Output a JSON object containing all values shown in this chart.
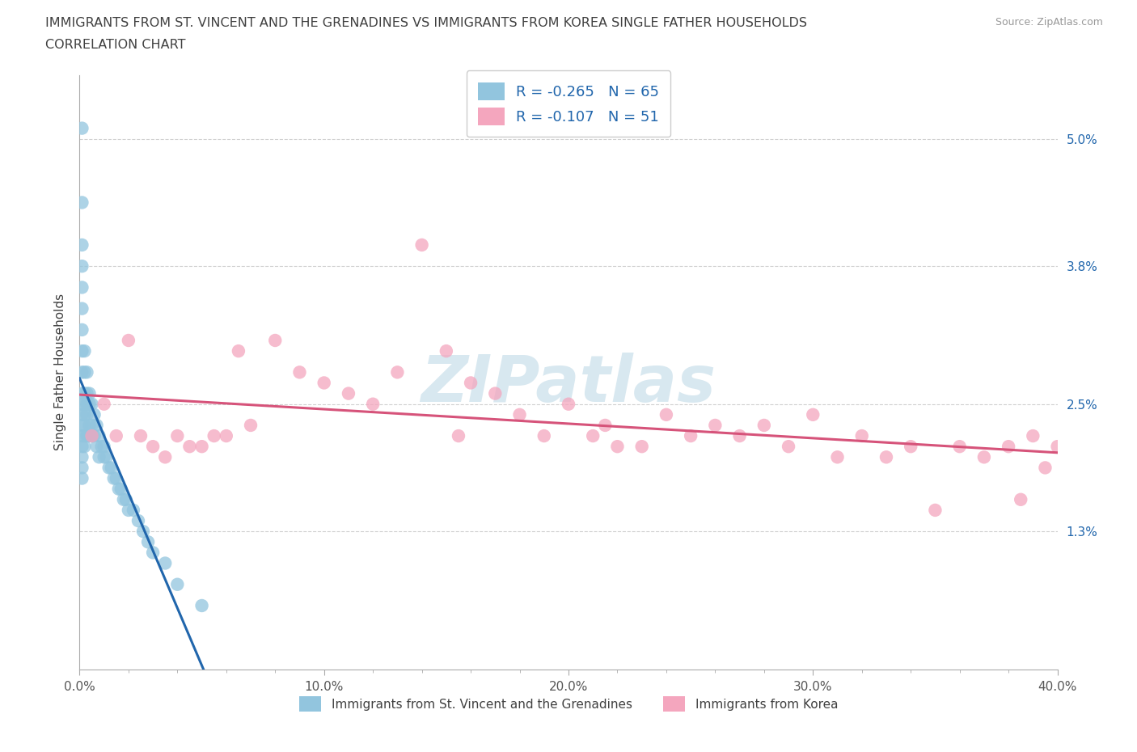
{
  "title_line1": "IMMIGRANTS FROM ST. VINCENT AND THE GRENADINES VS IMMIGRANTS FROM KOREA SINGLE FATHER HOUSEHOLDS",
  "title_line2": "CORRELATION CHART",
  "source": "Source: ZipAtlas.com",
  "ylabel": "Single Father Households",
  "legend_label1": "Immigrants from St. Vincent and the Grenadines",
  "legend_label2": "Immigrants from Korea",
  "r1": -0.265,
  "n1": 65,
  "r2": -0.107,
  "n2": 51,
  "color1": "#92c5de",
  "color2": "#f4a6be",
  "trendline1_color": "#2166ac",
  "trendline2_color": "#d6537a",
  "dashed_color": "#aaaaaa",
  "xlim": [
    0.0,
    0.4
  ],
  "ylim": [
    0.0,
    0.056
  ],
  "yticks": [
    0.013,
    0.025,
    0.038,
    0.05
  ],
  "ytick_labels": [
    "1.3%",
    "2.5%",
    "3.8%",
    "5.0%"
  ],
  "xticks": [
    0.0,
    0.1,
    0.2,
    0.3,
    0.4
  ],
  "xtick_labels": [
    "0.0%",
    "10.0%",
    "20.0%",
    "30.0%",
    "40.0%"
  ],
  "background_color": "#ffffff",
  "grid_color": "#d0d0d0",
  "title_color": "#404040",
  "right_tick_color": "#2166ac",
  "watermark_color": "#d8e8f0",
  "blue_dots_x": [
    0.001,
    0.001,
    0.001,
    0.001,
    0.001,
    0.001,
    0.001,
    0.001,
    0.001,
    0.001,
    0.001,
    0.001,
    0.001,
    0.001,
    0.001,
    0.001,
    0.001,
    0.001,
    0.002,
    0.002,
    0.002,
    0.002,
    0.002,
    0.002,
    0.002,
    0.002,
    0.003,
    0.003,
    0.003,
    0.003,
    0.003,
    0.004,
    0.004,
    0.004,
    0.004,
    0.005,
    0.005,
    0.005,
    0.006,
    0.006,
    0.007,
    0.007,
    0.008,
    0.008,
    0.009,
    0.01,
    0.01,
    0.011,
    0.012,
    0.013,
    0.014,
    0.015,
    0.016,
    0.017,
    0.018,
    0.019,
    0.02,
    0.022,
    0.024,
    0.026,
    0.028,
    0.03,
    0.035,
    0.04,
    0.05
  ],
  "blue_dots_y": [
    0.051,
    0.044,
    0.04,
    0.038,
    0.036,
    0.034,
    0.032,
    0.03,
    0.028,
    0.026,
    0.025,
    0.024,
    0.023,
    0.022,
    0.021,
    0.02,
    0.019,
    0.018,
    0.03,
    0.028,
    0.026,
    0.025,
    0.024,
    0.023,
    0.022,
    0.021,
    0.028,
    0.026,
    0.025,
    0.024,
    0.022,
    0.026,
    0.025,
    0.023,
    0.022,
    0.025,
    0.023,
    0.022,
    0.024,
    0.022,
    0.023,
    0.021,
    0.022,
    0.02,
    0.021,
    0.021,
    0.02,
    0.02,
    0.019,
    0.019,
    0.018,
    0.018,
    0.017,
    0.017,
    0.016,
    0.016,
    0.015,
    0.015,
    0.014,
    0.013,
    0.012,
    0.011,
    0.01,
    0.008,
    0.006
  ],
  "pink_dots_x": [
    0.005,
    0.01,
    0.015,
    0.02,
    0.025,
    0.03,
    0.035,
    0.04,
    0.045,
    0.05,
    0.055,
    0.06,
    0.065,
    0.07,
    0.08,
    0.09,
    0.1,
    0.11,
    0.12,
    0.13,
    0.14,
    0.15,
    0.155,
    0.16,
    0.17,
    0.18,
    0.19,
    0.2,
    0.21,
    0.215,
    0.22,
    0.23,
    0.24,
    0.25,
    0.26,
    0.27,
    0.28,
    0.29,
    0.3,
    0.31,
    0.32,
    0.33,
    0.34,
    0.35,
    0.36,
    0.37,
    0.38,
    0.385,
    0.39,
    0.395,
    0.4
  ],
  "pink_dots_y": [
    0.022,
    0.025,
    0.022,
    0.031,
    0.022,
    0.021,
    0.02,
    0.022,
    0.021,
    0.021,
    0.022,
    0.022,
    0.03,
    0.023,
    0.031,
    0.028,
    0.027,
    0.026,
    0.025,
    0.028,
    0.04,
    0.03,
    0.022,
    0.027,
    0.026,
    0.024,
    0.022,
    0.025,
    0.022,
    0.023,
    0.021,
    0.021,
    0.024,
    0.022,
    0.023,
    0.022,
    0.023,
    0.021,
    0.024,
    0.02,
    0.022,
    0.02,
    0.021,
    0.015,
    0.021,
    0.02,
    0.021,
    0.016,
    0.022,
    0.019,
    0.021
  ]
}
